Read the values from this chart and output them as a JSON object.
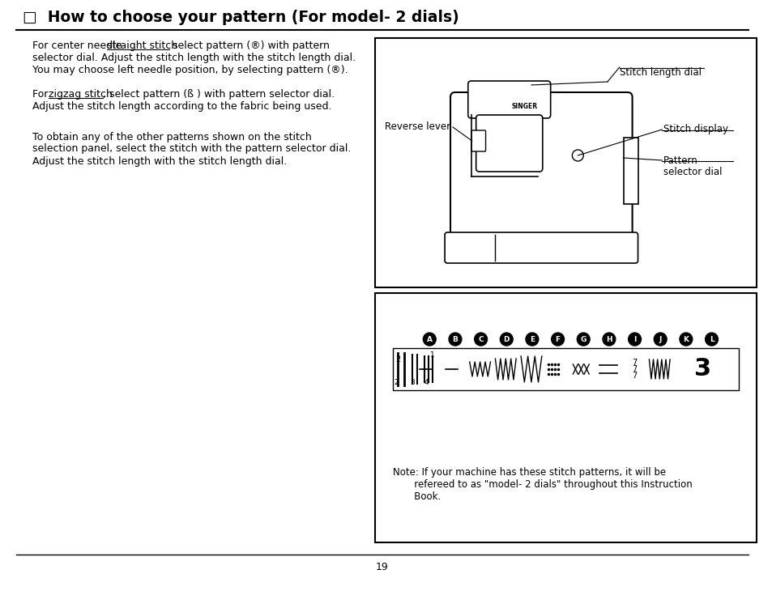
{
  "title": "□  How to choose your pattern (For model- 2 dials)",
  "page_number": "19",
  "bg_color": "#ffffff",
  "text_color": "#000000",
  "stitch_labels": [
    "A",
    "B",
    "C",
    "D",
    "E",
    "F",
    "G",
    "H",
    "I",
    "J",
    "K",
    "L"
  ],
  "note_lines": [
    "Note: If your machine has these stitch patterns, it will be",
    "       refereed to as \"model- 2 dials\" throughout this Instruction",
    "       Book."
  ],
  "para1_line1_a": "For center needle ",
  "para1_line1_b": "straight stitch",
  "para1_line1_c": " select pattern (®) with pattern",
  "para1_line2": "selector dial. Adjust the stitch length with the stitch length dial.",
  "para1_line3": "You may choose left needle position, by selecting pattern (®).",
  "para2_line1_a": "For ",
  "para2_line1_b": "zigzag stitch",
  "para2_line1_c": ", select pattern (ß ) with pattern selector dial.",
  "para2_line2": "Adjust the stitch length according to the fabric being used.",
  "para3_lines": [
    "To obtain any of the other patterns shown on the stitch",
    "selection panel, select the stitch with the pattern selector dial.",
    "Adjust the stitch length with the stitch length dial."
  ],
  "machine_labels": {
    "stitch_length_dial": "Stitch length dial",
    "reverse_lever": "Reverse lever",
    "stitch_display": "Stitch display",
    "pattern_selector_dial_1": "Pattern",
    "pattern_selector_dial_2": "selector dial",
    "singer": "SINGER"
  }
}
